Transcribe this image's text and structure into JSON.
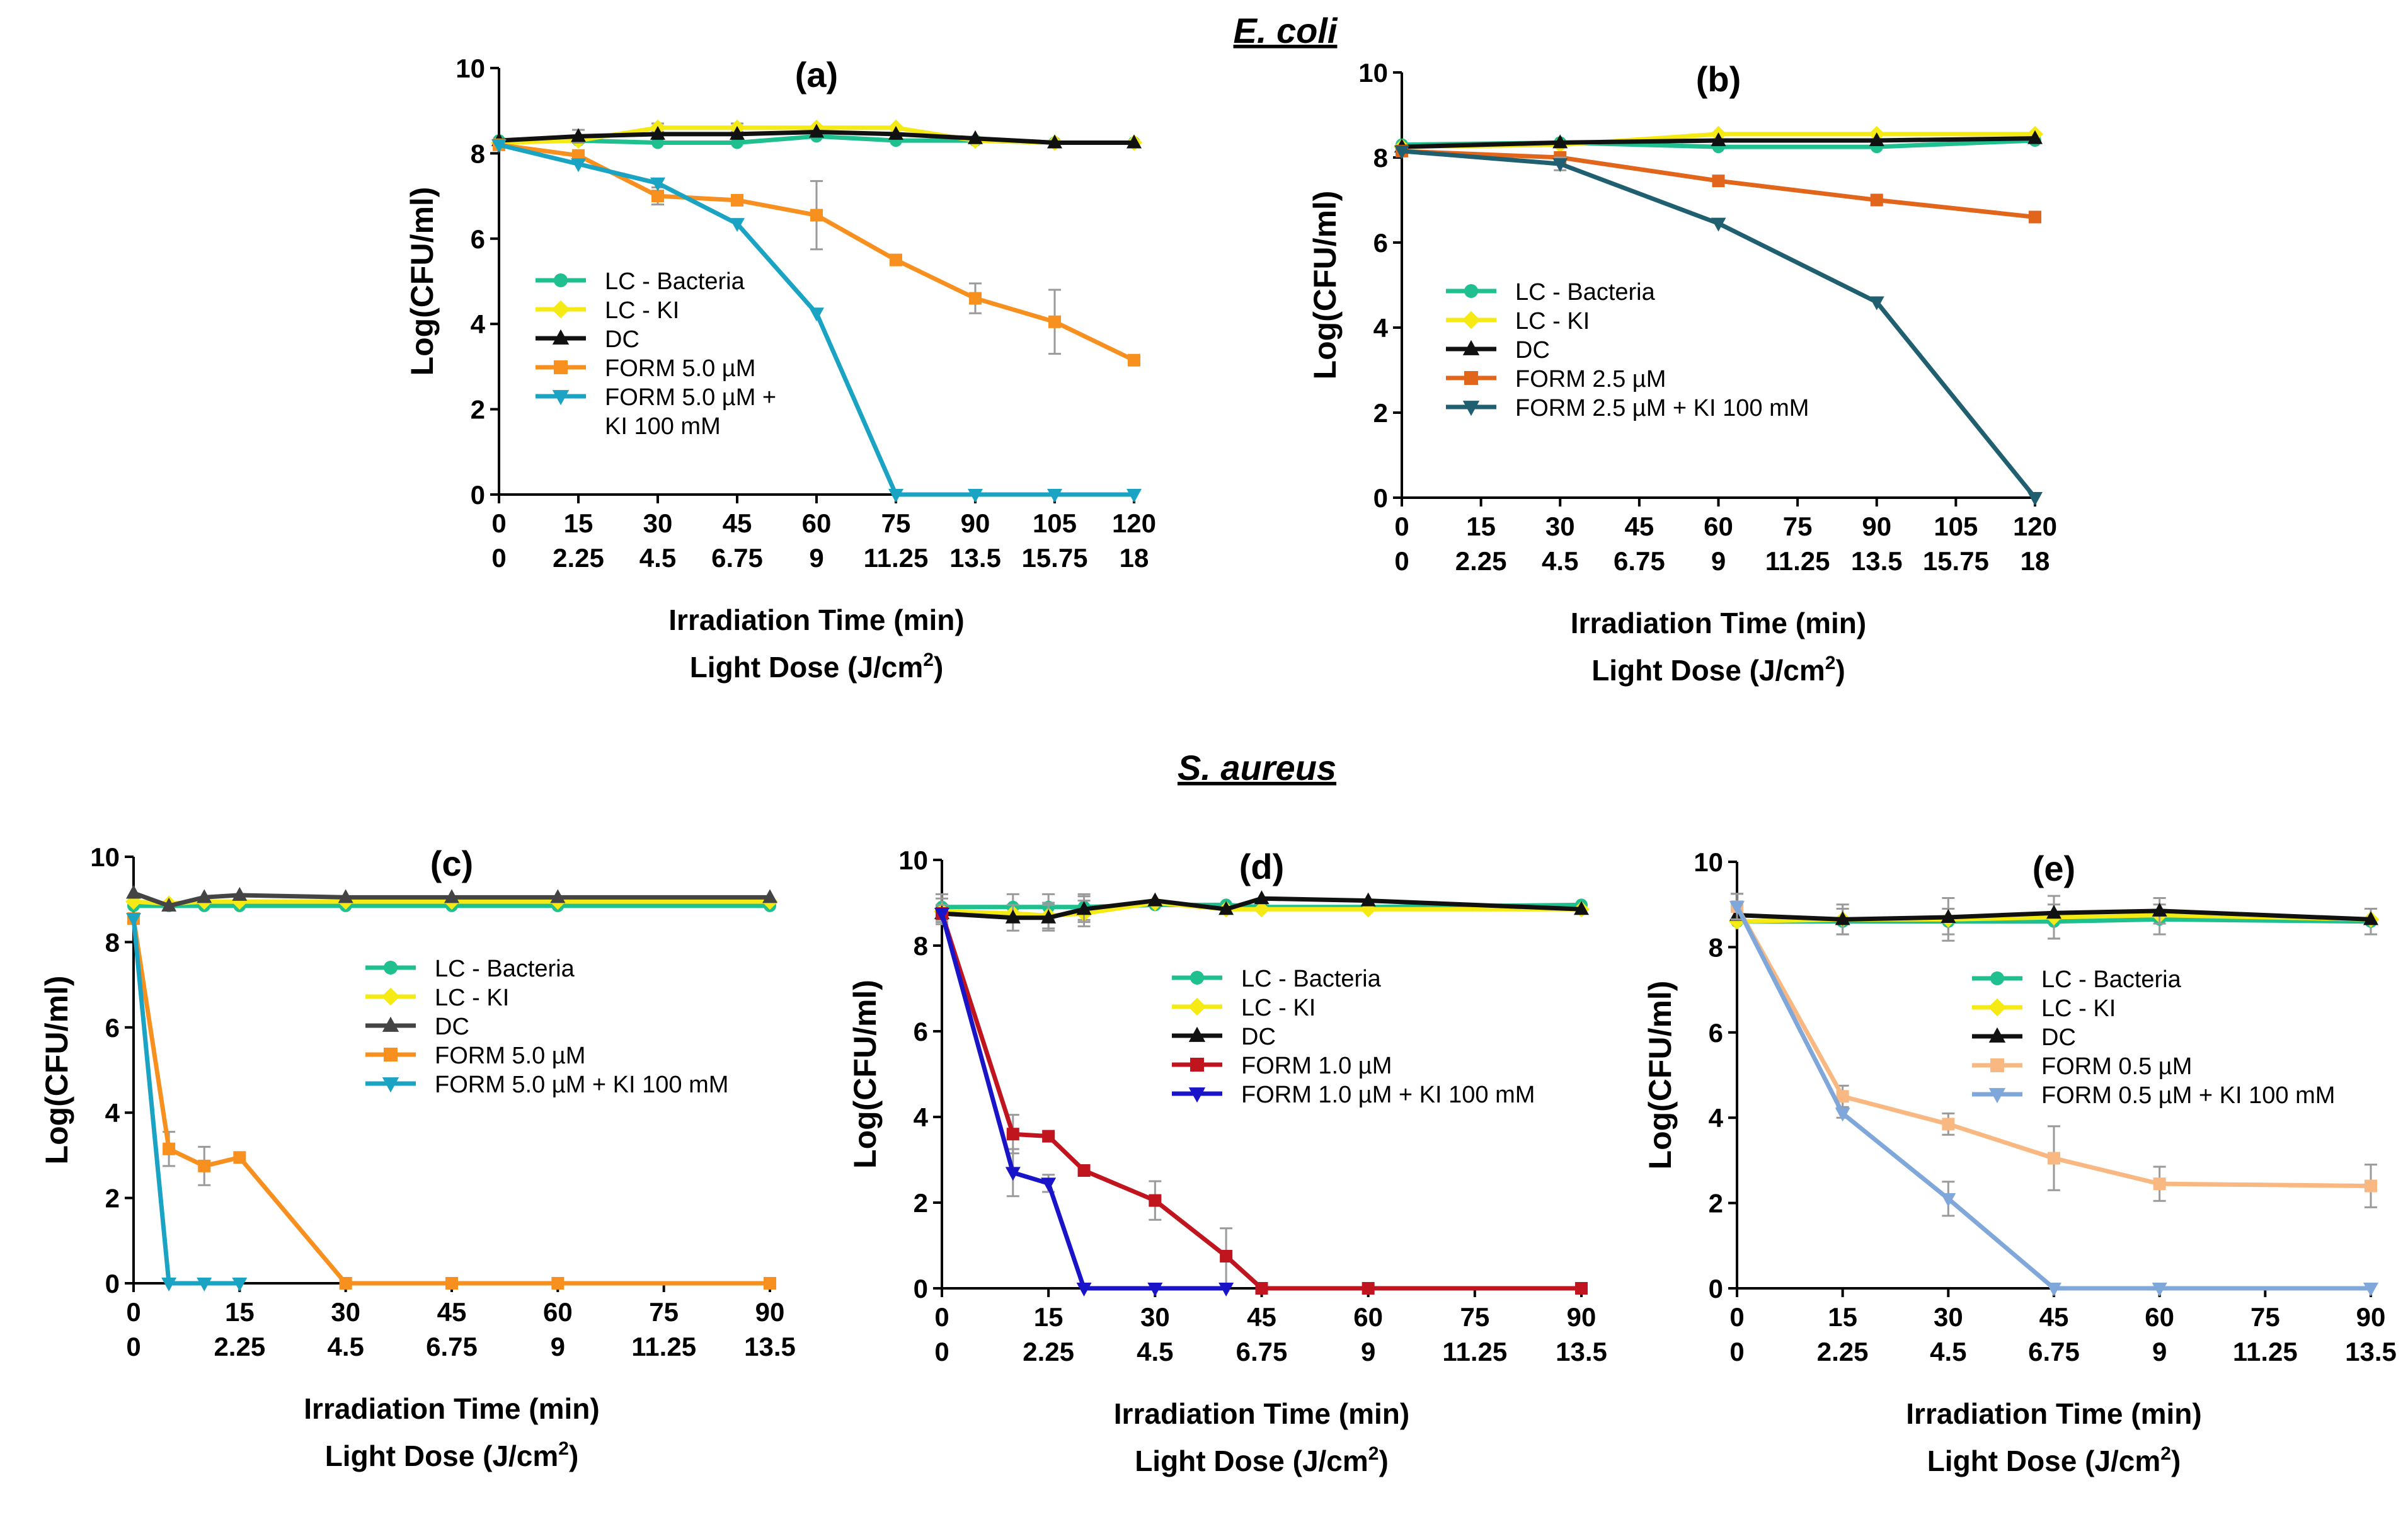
{
  "figure": {
    "group_top_title": "E. coli",
    "group_bottom_title": "S. aureus",
    "colors": {
      "axis": "#000000",
      "error_bar": "#9a9a9a",
      "lc_bacteria": "#1fbf8f",
      "lc_ki": "#f5ea14",
      "dc": "#111111"
    }
  },
  "chart_data": [
    {
      "id": "a",
      "title": "(a)",
      "type": "line",
      "ylabel": "Log(CFU/ml)",
      "xlabel_1": "Irradiation Time (min)",
      "xlabel_2": "Light Dose (J/cm",
      "xlabel_2_sup": "2",
      "xlabel_2_end": ")",
      "ylim": [
        0,
        10
      ],
      "y_ticks": [
        "0",
        "2",
        "4",
        "6",
        "8",
        "10"
      ],
      "xlim": [
        0,
        120
      ],
      "x_tick_values": [
        0,
        15,
        30,
        45,
        60,
        75,
        90,
        105,
        120
      ],
      "x_tick_labels": [
        "0",
        "15",
        "30",
        "45",
        "60",
        "75",
        "90",
        "105",
        "120"
      ],
      "x_tick_labels_2": [
        "0",
        "2.25",
        "4.5",
        "6.75",
        "9",
        "11.25",
        "13.5",
        "15.75",
        "18"
      ],
      "legend_position": "center-left",
      "series": [
        {
          "name": "LC - Bacteria",
          "color": "#1fbf8f",
          "marker": "circle",
          "x": [
            0,
            15,
            30,
            45,
            60,
            75,
            90,
            105,
            120
          ],
          "y": [
            8.3,
            8.3,
            8.25,
            8.25,
            8.4,
            8.3,
            8.3,
            8.25,
            8.25
          ],
          "err": [
            0,
            0,
            0,
            0,
            0,
            0,
            0,
            0,
            0
          ]
        },
        {
          "name": "LC - KI",
          "color": "#f5ea14",
          "marker": "diamond",
          "x": [
            0,
            15,
            30,
            45,
            60,
            75,
            90,
            105,
            120
          ],
          "y": [
            8.25,
            8.3,
            8.6,
            8.6,
            8.6,
            8.6,
            8.3,
            8.25,
            8.25
          ],
          "err": [
            0,
            0,
            0.1,
            0.1,
            0,
            0,
            0,
            0,
            0
          ]
        },
        {
          "name": "DC",
          "color": "#111111",
          "marker": "triangle-up",
          "x": [
            0,
            15,
            30,
            45,
            60,
            75,
            90,
            105,
            120
          ],
          "y": [
            8.3,
            8.4,
            8.45,
            8.45,
            8.5,
            8.45,
            8.35,
            8.25,
            8.25
          ],
          "err": [
            0,
            0.15,
            0,
            0,
            0,
            0,
            0,
            0,
            0
          ]
        },
        {
          "name": "FORM 5.0 µM",
          "color": "#f7901e",
          "marker": "square",
          "x": [
            0,
            15,
            30,
            45,
            60,
            75,
            90,
            105,
            120
          ],
          "y": [
            8.2,
            7.95,
            7.0,
            6.9,
            6.55,
            5.5,
            4.6,
            4.05,
            3.15
          ],
          "err": [
            0,
            0,
            0.2,
            0,
            0.8,
            0,
            0.35,
            0.75,
            0
          ]
        },
        {
          "name": "FORM 5.0 µM  +",
          "name_line2": "KI 100 mM",
          "color": "#1aa3c3",
          "marker": "triangle-down",
          "x": [
            0,
            15,
            30,
            45,
            60,
            75,
            90,
            105,
            120
          ],
          "y": [
            8.2,
            7.75,
            7.3,
            6.35,
            4.25,
            0,
            0,
            0,
            0
          ],
          "err": [
            0,
            0,
            0,
            0,
            0,
            0,
            0,
            0,
            0
          ]
        }
      ]
    },
    {
      "id": "b",
      "title": "(b)",
      "type": "line",
      "ylabel": "Log(CFU/ml)",
      "xlabel_1": "Irradiation Time (min)",
      "xlabel_2": "Light Dose (J/cm",
      "xlabel_2_sup": "2",
      "xlabel_2_end": ")",
      "ylim": [
        0,
        10
      ],
      "y_ticks": [
        "0",
        "2",
        "4",
        "6",
        "8",
        "10"
      ],
      "xlim": [
        0,
        120
      ],
      "x_tick_values": [
        0,
        15,
        30,
        45,
        60,
        75,
        90,
        105,
        120
      ],
      "x_tick_labels": [
        "0",
        "15",
        "30",
        "45",
        "60",
        "75",
        "90",
        "105",
        "120"
      ],
      "x_tick_labels_2": [
        "0",
        "2.25",
        "4.5",
        "6.75",
        "9",
        "11.25",
        "13.5",
        "15.75",
        "18"
      ],
      "legend_position": "lower-left",
      "series": [
        {
          "name": "LC - Bacteria",
          "color": "#1fbf8f",
          "marker": "circle",
          "x": [
            0,
            30,
            60,
            90,
            120
          ],
          "y": [
            8.3,
            8.35,
            8.25,
            8.25,
            8.4
          ],
          "err": [
            0,
            0,
            0,
            0,
            0
          ]
        },
        {
          "name": "LC - KI",
          "color": "#f5ea14",
          "marker": "diamond",
          "x": [
            0,
            30,
            60,
            90,
            120
          ],
          "y": [
            8.25,
            8.3,
            8.55,
            8.55,
            8.55
          ],
          "err": [
            0,
            0,
            0,
            0,
            0
          ]
        },
        {
          "name": "DC",
          "color": "#111111",
          "marker": "triangle-up",
          "x": [
            0,
            30,
            60,
            90,
            120
          ],
          "y": [
            8.25,
            8.35,
            8.4,
            8.4,
            8.45
          ],
          "err": [
            0,
            0,
            0,
            0,
            0
          ]
        },
        {
          "name": "FORM 2.5 µM",
          "color": "#e2651c",
          "marker": "square",
          "x": [
            0,
            30,
            60,
            90,
            120
          ],
          "y": [
            8.15,
            8.0,
            7.45,
            7.0,
            6.6
          ],
          "err": [
            0,
            0,
            0,
            0,
            0
          ]
        },
        {
          "name": "FORM 2.5 µM + KI 100 mM",
          "color": "#1f5f6f",
          "marker": "triangle-down",
          "x": [
            0,
            30,
            60,
            90,
            120
          ],
          "y": [
            8.15,
            7.85,
            6.45,
            4.6,
            0
          ],
          "err": [
            0,
            0.15,
            0,
            0,
            0
          ]
        }
      ]
    },
    {
      "id": "c",
      "title": "(c)",
      "type": "line",
      "ylabel": "Log(CFU/ml)",
      "xlabel_1": "Irradiation Time (min)",
      "xlabel_2": "Light Dose (J/cm",
      "xlabel_2_sup": "2",
      "xlabel_2_end": ")",
      "ylim": [
        0,
        10
      ],
      "y_ticks": [
        "0",
        "2",
        "4",
        "6",
        "8",
        "10"
      ],
      "xlim": [
        0,
        90
      ],
      "x_tick_values": [
        0,
        15,
        30,
        45,
        60,
        75,
        90
      ],
      "x_tick_labels": [
        "0",
        "15",
        "30",
        "45",
        "60",
        "75",
        "90"
      ],
      "x_tick_labels_2": [
        "0",
        "2.25",
        "4.5",
        "6.75",
        "9",
        "11.25",
        "13.5"
      ],
      "legend_position": "center-right",
      "series": [
        {
          "name": "LC - Bacteria",
          "color": "#1fbf8f",
          "marker": "circle",
          "x": [
            0,
            5,
            10,
            15,
            30,
            45,
            60,
            90
          ],
          "y": [
            8.85,
            8.85,
            8.85,
            8.85,
            8.85,
            8.85,
            8.85,
            8.85
          ],
          "err": [
            0,
            0,
            0,
            0,
            0,
            0,
            0,
            0
          ]
        },
        {
          "name": "LC - KI",
          "color": "#f5ea14",
          "marker": "diamond",
          "x": [
            0,
            5,
            10,
            15,
            30,
            45,
            60,
            90
          ],
          "y": [
            8.95,
            8.9,
            8.95,
            8.95,
            8.95,
            8.95,
            8.95,
            8.95
          ],
          "err": [
            0,
            0,
            0,
            0,
            0,
            0,
            0,
            0
          ]
        },
        {
          "name": "DC",
          "color": "#444444",
          "marker": "triangle-up",
          "x": [
            0,
            5,
            10,
            15,
            30,
            45,
            60,
            90
          ],
          "y": [
            9.15,
            8.85,
            9.05,
            9.1,
            9.05,
            9.05,
            9.05,
            9.05
          ],
          "err": [
            0,
            0,
            0,
            0,
            0,
            0,
            0,
            0
          ]
        },
        {
          "name": "FORM 5.0 µM",
          "color": "#f7901e",
          "marker": "square",
          "x": [
            0,
            5,
            10,
            15,
            30,
            45,
            60,
            90
          ],
          "y": [
            8.55,
            3.15,
            2.75,
            2.95,
            0,
            0,
            0,
            0
          ],
          "err": [
            0,
            0.4,
            0.45,
            0,
            0,
            0,
            0,
            0
          ]
        },
        {
          "name": "FORM 5.0 µM + KI 100 mM",
          "color": "#1aa3c3",
          "marker": "triangle-down",
          "x": [
            0,
            5,
            10,
            15
          ],
          "y": [
            8.55,
            0,
            0,
            0
          ],
          "err": [
            0,
            0,
            0,
            0
          ]
        }
      ]
    },
    {
      "id": "d",
      "title": "(d)",
      "type": "line",
      "ylabel": "Log(CFU/ml)",
      "xlabel_1": "Irradiation Time (min)",
      "xlabel_2": "Light Dose (J/cm",
      "xlabel_2_sup": "2",
      "xlabel_2_end": ")",
      "ylim": [
        0,
        10
      ],
      "y_ticks": [
        "0",
        "2",
        "4",
        "6",
        "8",
        "10"
      ],
      "xlim": [
        0,
        90
      ],
      "x_tick_values": [
        0,
        15,
        30,
        45,
        60,
        75,
        90
      ],
      "x_tick_labels": [
        "0",
        "15",
        "30",
        "45",
        "60",
        "75",
        "90"
      ],
      "x_tick_labels_2": [
        "0",
        "2.25",
        "4.5",
        "6.75",
        "9",
        "11.25",
        "13.5"
      ],
      "legend_position": "center-right",
      "series": [
        {
          "name": "LC - Bacteria",
          "color": "#1fbf8f",
          "marker": "circle",
          "x": [
            0,
            10,
            15,
            20,
            30,
            40,
            45,
            60,
            90
          ],
          "y": [
            8.9,
            8.9,
            8.9,
            8.9,
            8.95,
            8.95,
            8.9,
            8.9,
            8.95
          ],
          "err": [
            0.3,
            0.3,
            0.3,
            0.3,
            0,
            0,
            0,
            0,
            0
          ]
        },
        {
          "name": "LC - KI",
          "color": "#f5ea14",
          "marker": "diamond",
          "x": [
            0,
            10,
            15,
            20,
            30,
            40,
            45,
            60,
            90
          ],
          "y": [
            8.8,
            8.75,
            8.7,
            8.75,
            9.0,
            8.85,
            8.85,
            8.85,
            8.85
          ],
          "err": [
            0.3,
            0,
            0.3,
            0.3,
            0,
            0,
            0,
            0,
            0
          ]
        },
        {
          "name": "DC",
          "color": "#111111",
          "marker": "triangle-up",
          "x": [
            0,
            10,
            15,
            20,
            30,
            40,
            45,
            60,
            90
          ],
          "y": [
            8.75,
            8.65,
            8.65,
            8.85,
            9.05,
            8.85,
            9.1,
            9.05,
            8.85
          ],
          "err": [
            0.2,
            0.3,
            0.3,
            0.3,
            0,
            0,
            0,
            0,
            0
          ]
        },
        {
          "name": "FORM 1.0 µM",
          "color": "#c0141e",
          "marker": "square",
          "x": [
            0,
            10,
            15,
            20,
            30,
            40,
            45,
            60,
            90
          ],
          "y": [
            8.75,
            3.6,
            3.55,
            2.75,
            2.05,
            0.75,
            0,
            0,
            0
          ],
          "err": [
            0,
            0.45,
            0,
            0,
            0.45,
            0.65,
            0,
            0,
            0
          ]
        },
        {
          "name": "FORM 1.0 µM + KI 100 mM",
          "color": "#1a14c8",
          "marker": "triangle-down",
          "x": [
            0,
            10,
            15,
            20,
            30,
            40
          ],
          "y": [
            8.75,
            2.7,
            2.45,
            0,
            0,
            0
          ],
          "err": [
            0,
            0.55,
            0.2,
            0,
            0,
            0
          ]
        }
      ]
    },
    {
      "id": "e",
      "title": "(e)",
      "type": "line",
      "ylabel": "Log(CFU/ml)",
      "xlabel_1": "Irradiation Time (min)",
      "xlabel_2": "Light Dose (J/cm",
      "xlabel_2_sup": "2",
      "xlabel_2_end": ")",
      "ylim": [
        0,
        10
      ],
      "y_ticks": [
        "0",
        "2",
        "4",
        "6",
        "8",
        "10"
      ],
      "xlim": [
        0,
        90
      ],
      "x_tick_values": [
        0,
        15,
        30,
        45,
        60,
        75,
        90
      ],
      "x_tick_labels": [
        "0",
        "15",
        "30",
        "45",
        "60",
        "75",
        "90"
      ],
      "x_tick_labels_2": [
        "0",
        "2.25",
        "4.5",
        "6.75",
        "9",
        "11.25",
        "13.5"
      ],
      "legend_position": "center-right",
      "series": [
        {
          "name": "LC - Bacteria",
          "color": "#1fbf8f",
          "marker": "circle",
          "x": [
            0,
            15,
            30,
            45,
            60,
            90
          ],
          "y": [
            8.6,
            8.6,
            8.6,
            8.6,
            8.65,
            8.6
          ],
          "err": [
            0,
            0.3,
            0.3,
            0.4,
            0.35,
            0.3
          ]
        },
        {
          "name": "LC - KI",
          "color": "#f5ea14",
          "marker": "diamond",
          "x": [
            0,
            15,
            30,
            45,
            60,
            90
          ],
          "y": [
            8.6,
            8.65,
            8.65,
            8.7,
            8.75,
            8.65
          ],
          "err": [
            0,
            0,
            0.5,
            0.5,
            0,
            0
          ]
        },
        {
          "name": "DC",
          "color": "#111111",
          "marker": "triangle-up",
          "x": [
            0,
            15,
            30,
            45,
            60,
            90
          ],
          "y": [
            8.75,
            8.65,
            8.7,
            8.8,
            8.85,
            8.65
          ],
          "err": [
            0,
            0.35,
            0,
            0,
            0.3,
            0
          ]
        },
        {
          "name": "FORM 0.5 µM",
          "color": "#f9b882",
          "marker": "square",
          "x": [
            0,
            15,
            30,
            45,
            60,
            90
          ],
          "y": [
            8.95,
            4.5,
            3.85,
            3.05,
            2.45,
            2.4
          ],
          "err": [
            0.3,
            0.25,
            0.25,
            0.75,
            0.4,
            0.5
          ]
        },
        {
          "name": "FORM 0.5 µM + KI 100 mM",
          "color": "#7fa7d9",
          "marker": "triangle-down",
          "x": [
            0,
            15,
            30,
            45,
            60,
            90
          ],
          "y": [
            8.95,
            4.1,
            2.1,
            0,
            0,
            0
          ],
          "err": [
            0.3,
            0.1,
            0.4,
            0,
            0,
            0
          ]
        }
      ]
    }
  ]
}
